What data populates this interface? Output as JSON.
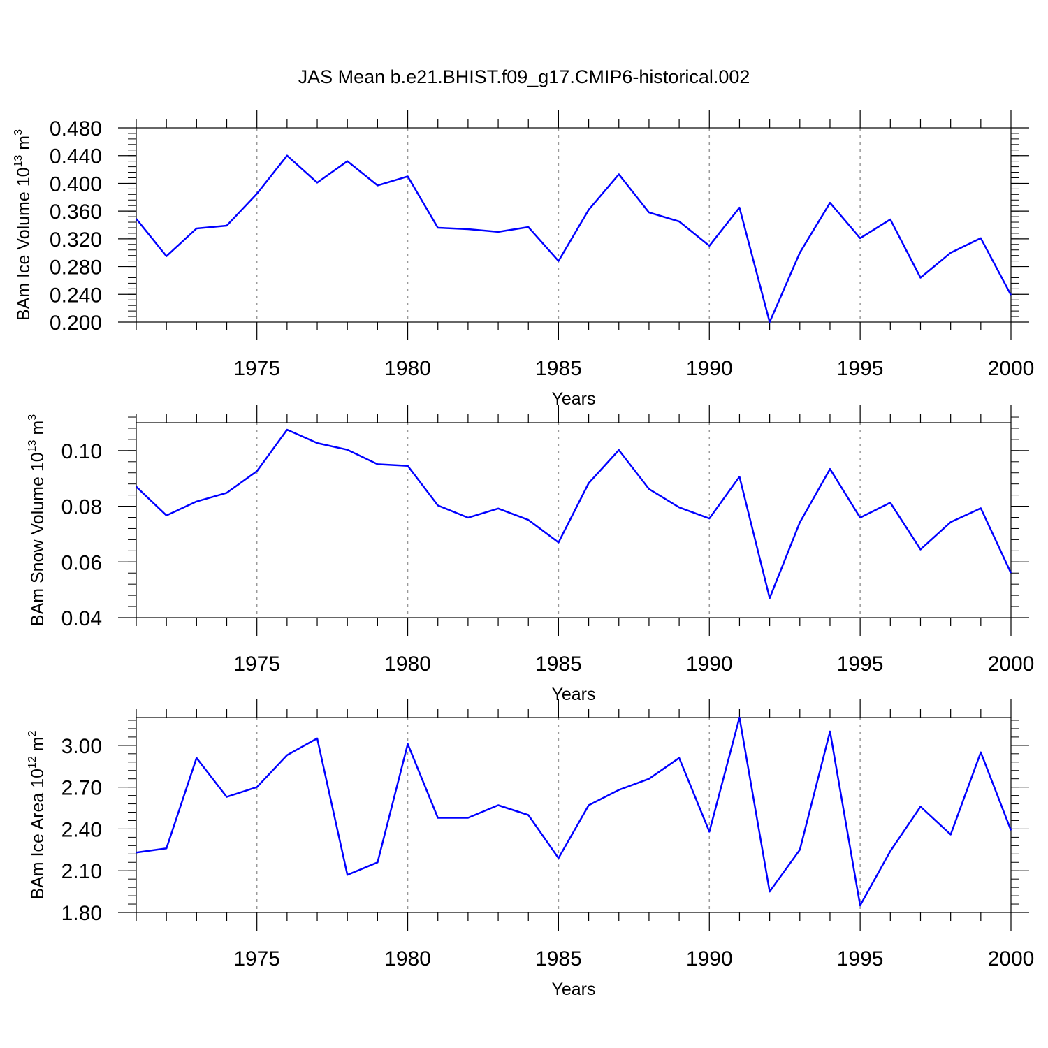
{
  "title": "JAS Mean b.e21.BHIST.f09_g17.CMIP6-historical.002",
  "colors": {
    "line": "#0000ff",
    "axis": "#000000",
    "grid": "#999999"
  },
  "chart_data": [
    {
      "type": "line",
      "ylabel": {
        "text": "BAm Ice Volume 10",
        "exp": "13",
        "unit": " m",
        "unit_exp": "3"
      },
      "xlabel": "Years",
      "xlim": [
        1971,
        2000
      ],
      "ylim": [
        0.2,
        0.48
      ],
      "yticks": [
        0.2,
        0.24,
        0.28,
        0.32,
        0.36,
        0.4,
        0.44,
        0.48
      ],
      "ytick_labels": [
        "0.200",
        "0.240",
        "0.280",
        "0.320",
        "0.360",
        "0.400",
        "0.440",
        "0.480"
      ],
      "ytick_minor_step": 0.008,
      "xticks": [
        1975,
        1980,
        1985,
        1990,
        1995,
        2000
      ],
      "xtick_labels": [
        "1975",
        "1980",
        "1985",
        "1990",
        "1995",
        "2000"
      ],
      "grid": "vertical dashed at labeled years",
      "x": [
        1971,
        1972,
        1973,
        1974,
        1975,
        1976,
        1977,
        1978,
        1979,
        1980,
        1981,
        1982,
        1983,
        1984,
        1985,
        1986,
        1987,
        1988,
        1989,
        1990,
        1991,
        1992,
        1993,
        1994,
        1995,
        1996,
        1997,
        1998,
        1999,
        2000
      ],
      "y": [
        0.349,
        0.295,
        0.335,
        0.339,
        0.385,
        0.44,
        0.401,
        0.432,
        0.397,
        0.41,
        0.336,
        0.334,
        0.33,
        0.337,
        0.288,
        0.362,
        0.413,
        0.358,
        0.345,
        0.31,
        0.365,
        0.2,
        0.3,
        0.372,
        0.321,
        0.348,
        0.264,
        0.3,
        0.321,
        0.239
      ]
    },
    {
      "type": "line",
      "ylabel": {
        "text": "BAm Snow Volume 10",
        "exp": "13",
        "unit": " m",
        "unit_exp": "3"
      },
      "xlabel": "Years",
      "xlim": [
        1971,
        2000
      ],
      "ylim": [
        0.04,
        0.11
      ],
      "yticks": [
        0.04,
        0.06,
        0.08,
        0.1
      ],
      "ytick_labels": [
        "0.04",
        "0.06",
        "0.08",
        "0.10"
      ],
      "ytick_minor_step": 0.004,
      "xticks": [
        1975,
        1980,
        1985,
        1990,
        1995,
        2000
      ],
      "xtick_labels": [
        "1975",
        "1980",
        "1985",
        "1990",
        "1995",
        "2000"
      ],
      "grid": "vertical dashed at labeled years",
      "x": [
        1971,
        1972,
        1973,
        1974,
        1975,
        1976,
        1977,
        1978,
        1979,
        1980,
        1981,
        1982,
        1983,
        1984,
        1985,
        1986,
        1987,
        1988,
        1989,
        1990,
        1991,
        1992,
        1993,
        1994,
        1995,
        1996,
        1997,
        1998,
        1999,
        2000
      ],
      "y": [
        0.087,
        0.0767,
        0.0817,
        0.0848,
        0.0926,
        0.1075,
        0.1027,
        0.1003,
        0.0951,
        0.0945,
        0.0803,
        0.0759,
        0.0792,
        0.0751,
        0.067,
        0.0883,
        0.1002,
        0.0862,
        0.0796,
        0.0756,
        0.0906,
        0.047,
        0.0742,
        0.0934,
        0.0759,
        0.0813,
        0.0645,
        0.0743,
        0.0793,
        0.056
      ]
    },
    {
      "type": "line",
      "ylabel": {
        "text": "BAm Ice Area 10",
        "exp": "12",
        "unit": " m",
        "unit_exp": "2"
      },
      "xlabel": "Years",
      "xlim": [
        1971,
        2000
      ],
      "ylim": [
        1.8,
        3.2
      ],
      "yticks": [
        1.8,
        2.1,
        2.4,
        2.7,
        3.0
      ],
      "ytick_labels": [
        "1.80",
        "2.10",
        "2.40",
        "2.70",
        "3.00"
      ],
      "ytick_minor_step": 0.06,
      "xticks": [
        1975,
        1980,
        1985,
        1990,
        1995,
        2000
      ],
      "xtick_labels": [
        "1975",
        "1980",
        "1985",
        "1990",
        "1995",
        "2000"
      ],
      "grid": "vertical dashed at labeled years",
      "x": [
        1971,
        1972,
        1973,
        1974,
        1975,
        1976,
        1977,
        1978,
        1979,
        1980,
        1981,
        1982,
        1983,
        1984,
        1985,
        1986,
        1987,
        1988,
        1989,
        1990,
        1991,
        1992,
        1993,
        1994,
        1995,
        1996,
        1997,
        1998,
        1999,
        2000
      ],
      "y": [
        2.23,
        2.26,
        2.91,
        2.63,
        2.7,
        2.93,
        3.05,
        2.07,
        2.16,
        3.01,
        2.48,
        2.48,
        2.57,
        2.5,
        2.19,
        2.57,
        2.68,
        2.76,
        2.91,
        2.38,
        3.2,
        1.95,
        2.25,
        3.1,
        1.85,
        2.24,
        2.56,
        2.36,
        2.95,
        2.39
      ]
    }
  ]
}
